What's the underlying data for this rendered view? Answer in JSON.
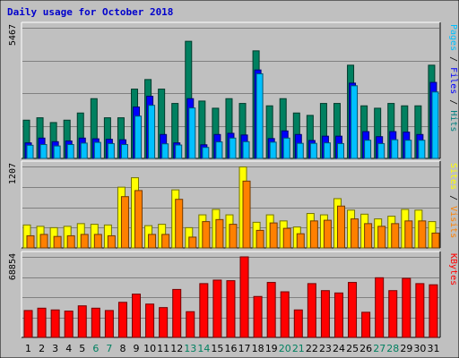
{
  "chart_data": {
    "type": "bar",
    "title": "Daily usage for October 2018",
    "categories": [
      "1",
      "2",
      "3",
      "4",
      "5",
      "6",
      "7",
      "8",
      "9",
      "10",
      "11",
      "12",
      "13",
      "14",
      "15",
      "16",
      "17",
      "18",
      "19",
      "20",
      "21",
      "22",
      "23",
      "24",
      "25",
      "26",
      "27",
      "28",
      "29",
      "30",
      "31"
    ],
    "weekend_days": [
      "6",
      "7",
      "13",
      "14",
      "20",
      "21",
      "27",
      "28"
    ],
    "panels": [
      {
        "name": "pages-files-hits",
        "max_label": "5467",
        "ymax": 5467,
        "axis_labels": [
          {
            "text": "Pages",
            "color": "#00c0ff"
          },
          {
            "text": " / ",
            "color": "#000000"
          },
          {
            "text": "Files",
            "color": "#0000ff"
          },
          {
            "text": " / ",
            "color": "#000000"
          },
          {
            "text": "Hits",
            "color": "#008080"
          }
        ],
        "series": [
          {
            "name": "Hits",
            "color": "#008060",
            "values": [
              1600,
              1700,
              1500,
              1600,
              1900,
              2500,
              1700,
              1700,
              2900,
              3300,
              2900,
              2300,
              4900,
              2400,
              2100,
              2500,
              2300,
              4500,
              2200,
              2500,
              1900,
              1800,
              2300,
              2300,
              3900,
              2200,
              2100,
              2300,
              2200,
              2200,
              3900
            ]
          },
          {
            "name": "Files",
            "color": "#0000ff",
            "values": [
              650,
              850,
              700,
              730,
              850,
              820,
              800,
              780,
              2150,
              2600,
              1000,
              650,
              2500,
              570,
              1000,
              1050,
              980,
              3700,
              830,
              1150,
              1000,
              750,
              930,
              930,
              3150,
              1120,
              910,
              1120,
              1100,
              1000,
              3180
            ]
          },
          {
            "name": "Pages",
            "color": "#00c0ff",
            "values": [
              550,
              580,
              520,
              580,
              640,
              670,
              620,
              580,
              1770,
              2220,
              610,
              560,
              2110,
              460,
              690,
              850,
              700,
              3540,
              680,
              850,
              630,
              630,
              650,
              620,
              3040,
              760,
              620,
              780,
              760,
              760,
              2780
            ]
          }
        ]
      },
      {
        "name": "sites-visits",
        "max_label": "1207",
        "ymax": 1207,
        "axis_labels": [
          {
            "text": "Sites",
            "color": "#ffff00"
          },
          {
            "text": " / ",
            "color": "#000000"
          },
          {
            "text": "Visits",
            "color": "#ff8000"
          }
        ],
        "series": [
          {
            "name": "Visits",
            "color": "#ffff00",
            "values": [
              340,
              320,
              300,
              320,
              360,
              350,
              340,
              900,
              1040,
              330,
              350,
              860,
              300,
              490,
              570,
              490,
              1200,
              380,
              490,
              400,
              310,
              510,
              490,
              730,
              560,
              500,
              430,
              470,
              570,
              560,
              390
            ]
          },
          {
            "name": "Sites",
            "color": "#ff8000",
            "values": [
              180,
              200,
              170,
              180,
              200,
              200,
              180,
              760,
              850,
              200,
              200,
              720,
              160,
              390,
              420,
              350,
              990,
              260,
              370,
              290,
              210,
              400,
              410,
              620,
              430,
              360,
              320,
              360,
              400,
              400,
              220
            ]
          }
        ]
      },
      {
        "name": "kbytes",
        "max_label": "68854",
        "ymax": 68854,
        "axis_labels": [
          {
            "text": "KBytes",
            "color": "#ff0000"
          }
        ],
        "series": [
          {
            "name": "KBytes",
            "color": "#ff0000",
            "values": [
              23000,
              25000,
              23500,
              22500,
              27000,
              25000,
              23000,
              30000,
              37000,
              28500,
              25500,
              41000,
              22000,
              46000,
              49000,
              48500,
              68854,
              35000,
              47000,
              39000,
              23500,
              46000,
              40000,
              38000,
              47000,
              21500,
              51000,
              40000,
              50500,
              46000,
              45000
            ]
          }
        ]
      }
    ]
  }
}
